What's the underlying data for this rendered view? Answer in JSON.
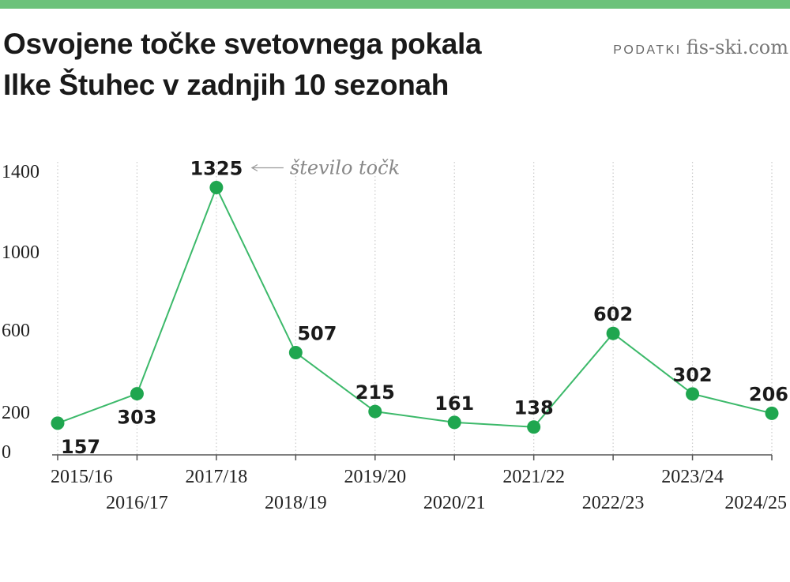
{
  "header": {
    "title_line1": "Osvojene točke svetovnega pokala",
    "title_line2": "Ilke Štuhec v zadnjih 10 sezonah",
    "source_label": "PODATKI",
    "source_value": "fis-ski.com"
  },
  "colors": {
    "accent": "#6cc27a",
    "line": "#3cb96a",
    "marker": "#1fa64f",
    "grid": "#cccccc",
    "axis": "#555555"
  },
  "chart_data": {
    "type": "line",
    "title": "Osvojene točke svetovnega pokala Ilke Štuhec v zadnjih 10 sezonah",
    "xlabel": "",
    "ylabel": "",
    "categories": [
      "2015/16",
      "2016/17",
      "2017/18",
      "2018/19",
      "2019/20",
      "2020/21",
      "2021/22",
      "2022/23",
      "2023/24",
      "2024/25"
    ],
    "series": [
      {
        "values": [
          157,
          303,
          1325,
          507,
          215,
          161,
          138,
          602,
          302,
          206
        ]
      }
    ],
    "yticks": [
      0,
      200,
      600,
      1000,
      1400
    ],
    "ytick_labels": [
      "0",
      "200",
      "600",
      "1000",
      "1400"
    ],
    "ylim": [
      0,
      1400
    ],
    "grid": "vertical dotted",
    "annotation": {
      "text": "število točk",
      "category": "2017/18"
    }
  }
}
